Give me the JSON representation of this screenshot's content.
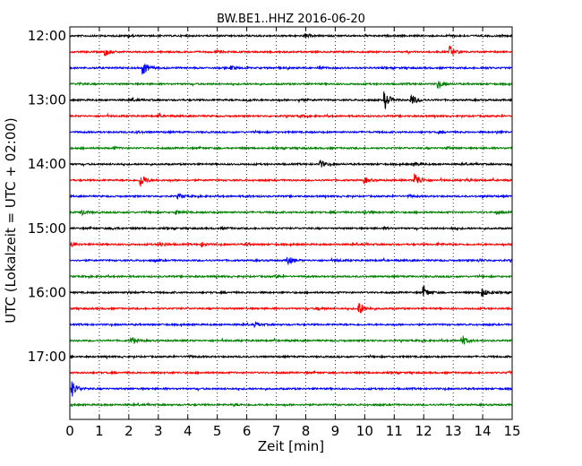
{
  "chart_data": {
    "type": "line",
    "title": "BW.BE1..HHZ 2016-06-20",
    "xlabel": "Zeit  [min]",
    "ylabel": "UTC (Lokalzeit = UTC + 02:00)",
    "xlim": [
      0,
      15
    ],
    "x_ticks": [
      "0",
      "1",
      "2",
      "3",
      "4",
      "5",
      "6",
      "7",
      "8",
      "9",
      "10",
      "11",
      "12",
      "13",
      "14",
      "15"
    ],
    "y_tick_labels": [
      "12:00",
      "13:00",
      "14:00",
      "15:00",
      "16:00",
      "17:00"
    ],
    "grid": "vertical dotted",
    "trace_interval_min": 15,
    "color_cycle": [
      "#000000",
      "#ff0000",
      "#0000ff",
      "#008000"
    ],
    "traces": [
      {
        "start": "12:00",
        "events": [
          [
            2.0,
            1
          ],
          [
            8.0,
            2
          ],
          [
            12.9,
            1
          ]
        ]
      },
      {
        "start": "12:15",
        "events": [
          [
            1.2,
            4
          ],
          [
            12.9,
            6
          ],
          [
            5.0,
            1
          ]
        ]
      },
      {
        "start": "12:30",
        "events": [
          [
            2.5,
            7
          ],
          [
            5.5,
            2
          ],
          [
            8.5,
            1
          ],
          [
            14.0,
            1
          ]
        ]
      },
      {
        "start": "12:45",
        "events": [
          [
            0.3,
            1
          ],
          [
            12.5,
            4
          ]
        ]
      },
      {
        "start": "13:00",
        "events": [
          [
            2.1,
            1
          ],
          [
            6.0,
            1
          ],
          [
            7.8,
            2
          ],
          [
            10.7,
            9
          ],
          [
            11.6,
            6
          ]
        ]
      },
      {
        "start": "13:15",
        "events": [
          [
            3.0,
            1
          ],
          [
            7.8,
            1
          ]
        ]
      },
      {
        "start": "13:30",
        "events": [
          [
            2.3,
            1
          ],
          [
            12.5,
            1
          ],
          [
            14.5,
            1
          ]
        ]
      },
      {
        "start": "13:45",
        "events": [
          [
            1.5,
            1
          ],
          [
            12.8,
            1
          ]
        ]
      },
      {
        "start": "14:00",
        "events": [
          [
            8.5,
            4
          ],
          [
            11.7,
            2
          ],
          [
            15.0,
            1
          ]
        ]
      },
      {
        "start": "14:15",
        "events": [
          [
            2.4,
            8
          ],
          [
            10.0,
            3
          ],
          [
            11.7,
            9
          ],
          [
            13.5,
            1
          ]
        ]
      },
      {
        "start": "14:30",
        "events": [
          [
            3.7,
            2
          ],
          [
            6.0,
            1
          ],
          [
            11.5,
            1
          ],
          [
            14.0,
            1
          ]
        ]
      },
      {
        "start": "14:45",
        "events": [
          [
            0.4,
            3
          ],
          [
            3.6,
            2
          ],
          [
            10.0,
            2
          ],
          [
            14.5,
            1
          ]
        ]
      },
      {
        "start": "15:00",
        "events": [
          [
            1.5,
            1
          ],
          [
            5.2,
            1
          ],
          [
            10.7,
            1
          ],
          [
            13.0,
            1
          ]
        ]
      },
      {
        "start": "15:15",
        "events": [
          [
            0.1,
            2
          ],
          [
            3.1,
            2
          ],
          [
            4.5,
            2
          ],
          [
            6.0,
            1
          ],
          [
            12.5,
            1
          ]
        ]
      },
      {
        "start": "15:30",
        "events": [
          [
            2.9,
            1
          ],
          [
            7.4,
            5
          ],
          [
            9.0,
            1
          ],
          [
            13.9,
            1
          ]
        ]
      },
      {
        "start": "15:45",
        "events": [
          [
            7.0,
            1
          ]
        ]
      },
      {
        "start": "16:00",
        "events": [
          [
            2.0,
            1
          ],
          [
            12.0,
            6
          ],
          [
            14.0,
            5
          ]
        ]
      },
      {
        "start": "16:15",
        "events": [
          [
            8.4,
            2
          ],
          [
            9.8,
            8
          ]
        ]
      },
      {
        "start": "16:30",
        "events": [
          [
            6.3,
            2
          ]
        ]
      },
      {
        "start": "16:45",
        "events": [
          [
            2.1,
            4
          ],
          [
            13.3,
            6
          ]
        ]
      },
      {
        "start": "17:00",
        "events": [
          [
            4.0,
            1
          ]
        ]
      },
      {
        "start": "17:15",
        "events": [
          [
            14.9,
            1
          ]
        ]
      },
      {
        "start": "17:30",
        "events": [
          [
            0.1,
            8
          ]
        ]
      },
      {
        "start": "17:45",
        "events": [
          [
            5.6,
            1
          ]
        ]
      }
    ]
  }
}
